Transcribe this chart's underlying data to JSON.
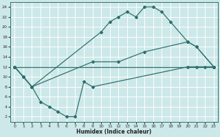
{
  "xlabel": "Humidex (Indice chaleur)",
  "bg_color": "#cde8e8",
  "grid_color": "#ffffff",
  "line_color": "#2d6e6e",
  "xlim": [
    -0.5,
    23.5
  ],
  "ylim": [
    1,
    25
  ],
  "xticks": [
    0,
    1,
    2,
    3,
    4,
    5,
    6,
    7,
    8,
    9,
    10,
    11,
    12,
    13,
    14,
    15,
    16,
    17,
    18,
    19,
    20,
    21,
    22,
    23
  ],
  "yticks": [
    2,
    4,
    6,
    8,
    10,
    12,
    14,
    16,
    18,
    20,
    22,
    24
  ],
  "line1": {
    "x": [
      0,
      1,
      2,
      10,
      11,
      12,
      13,
      14,
      15,
      16,
      17,
      18,
      20,
      21,
      23
    ],
    "y": [
      12,
      10,
      8,
      19,
      21,
      22,
      23,
      22,
      24,
      24,
      23,
      21,
      17,
      16,
      12
    ]
  },
  "line2": {
    "x": [
      0,
      1,
      2,
      9,
      12,
      15,
      20,
      21,
      23
    ],
    "y": [
      12,
      10,
      8,
      13,
      13,
      15,
      17,
      16,
      12
    ]
  },
  "line3": {
    "x": [
      0,
      1,
      2,
      3,
      4,
      5,
      6,
      7,
      8,
      9,
      20,
      21,
      22,
      23
    ],
    "y": [
      12,
      10,
      8,
      5,
      4,
      3,
      2,
      2,
      9,
      8,
      12,
      12,
      12,
      12
    ]
  },
  "line4": {
    "x": [
      0,
      23
    ],
    "y": [
      12,
      12
    ]
  }
}
